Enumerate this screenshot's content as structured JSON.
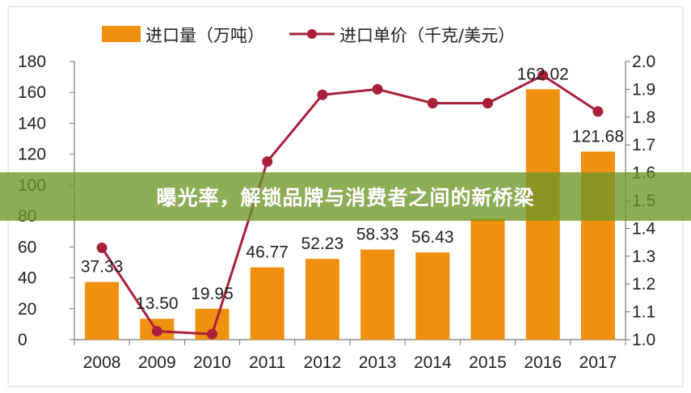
{
  "banner": {
    "text": "曝光率，解锁品牌与消费者之间的新桥梁"
  },
  "chart_data": {
    "type": "bar",
    "categories": [
      "2008",
      "2009",
      "2010",
      "2011",
      "2012",
      "2013",
      "2014",
      "2015",
      "2016",
      "2017"
    ],
    "series": [
      {
        "name": "进口量（万吨）",
        "type": "bar",
        "axis": "left",
        "color": "#f0900f",
        "values": [
          37.33,
          13.5,
          19.95,
          46.77,
          52.23,
          58.33,
          56.43,
          78,
          162.02,
          121.68
        ],
        "labels": [
          "37.33",
          "13.50",
          "19.95",
          "46.77",
          "52.23",
          "58.33",
          "56.43",
          "",
          "162.02",
          "121.68"
        ]
      },
      {
        "name": "进口单价（千克/美元）",
        "type": "line",
        "axis": "right",
        "color": "#a8203c",
        "values": [
          1.33,
          1.03,
          1.02,
          1.64,
          1.88,
          1.9,
          1.85,
          1.85,
          1.95,
          1.82
        ]
      }
    ],
    "y_left": {
      "ylim": [
        0,
        180
      ],
      "ticks": [
        "0",
        "20",
        "40",
        "60",
        "80",
        "100",
        "120",
        "140",
        "160",
        "180"
      ]
    },
    "y_right": {
      "ylim": [
        1.0,
        2.0
      ],
      "ticks": [
        "1.0",
        "1.1",
        "1.2",
        "1.3",
        "1.4",
        "1.5",
        "1.6",
        "1.7",
        "1.8",
        "1.9",
        "2.0"
      ]
    },
    "legend": "top-left",
    "grid": false
  }
}
